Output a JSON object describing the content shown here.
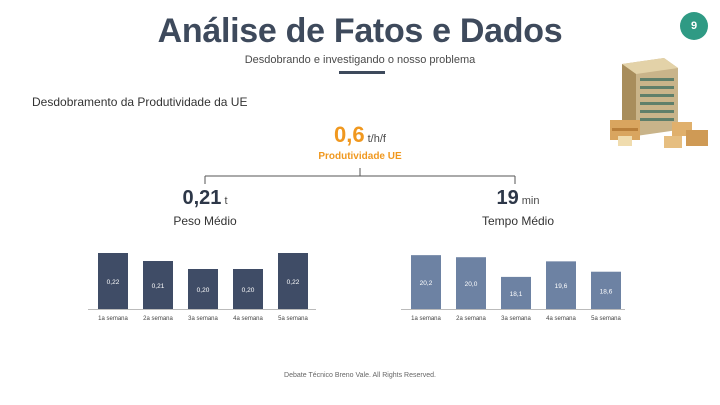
{
  "header": {
    "title": "Análise de Fatos e Dados",
    "subtitle": "Desdobrando e investigando o nosso problema",
    "page_number": "9"
  },
  "section_heading": "Desdobramento da Produtividade da UE",
  "kpis": {
    "top": {
      "value": "0,6",
      "unit": "t/h/f",
      "label": "Produtividade UE"
    },
    "left": {
      "value": "0,21",
      "unit": "t",
      "label": "Peso Médio"
    },
    "right": {
      "value": "19",
      "unit": "min",
      "label": "Tempo Médio"
    }
  },
  "chart_data": [
    {
      "type": "bar",
      "categories": [
        "1a semana",
        "2a semana",
        "3a semana",
        "4a semana",
        "5a semana"
      ],
      "values": [
        0.22,
        0.21,
        0.2,
        0.2,
        0.22
      ],
      "value_labels": [
        "0,22",
        "0,21",
        "0,20",
        "0,20",
        "0,22"
      ],
      "ylim": [
        0.15,
        0.225
      ],
      "color": "#3f4c66"
    },
    {
      "type": "bar",
      "categories": [
        "1a semana",
        "2a semana",
        "3a semana",
        "4a semana",
        "5a semana"
      ],
      "values": [
        20.2,
        20.0,
        18.1,
        19.6,
        18.6
      ],
      "value_labels": [
        "20,2",
        "20,0",
        "18,1",
        "19,6",
        "18,6"
      ],
      "ylim": [
        15,
        20.6
      ],
      "color": "#6d82a3"
    }
  ],
  "footer": "Debate Técnico Breno Vale. All Rights Reserved.",
  "colors": {
    "accent": "#f0981f",
    "title": "#3e4a5c",
    "badge": "#2f9a84"
  }
}
